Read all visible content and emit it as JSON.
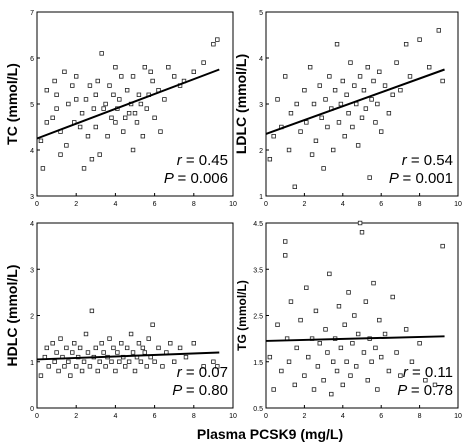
{
  "chart_data": [
    {
      "id": "tc",
      "type": "scatter",
      "ylabel": "TC (mmol/L)",
      "xlim": [
        0,
        10
      ],
      "ylim": [
        3,
        7
      ],
      "xticks": [
        0,
        2,
        4,
        6,
        8,
        10
      ],
      "yticks": [
        3,
        4,
        5,
        6,
        7
      ],
      "fit": {
        "x": [
          0,
          9.3
        ],
        "y": [
          4.25,
          5.75
        ]
      },
      "stats": {
        "r_label": "r",
        "r_value": "= 0.45",
        "p_label": "P",
        "p_value": "= 0.006"
      },
      "points": [
        [
          0.2,
          4.2
        ],
        [
          0.3,
          3.6
        ],
        [
          0.5,
          5.3
        ],
        [
          0.5,
          4.6
        ],
        [
          0.8,
          4.7
        ],
        [
          0.9,
          5.5
        ],
        [
          1.0,
          5.2
        ],
        [
          1.0,
          4.9
        ],
        [
          1.2,
          4.4
        ],
        [
          1.2,
          3.9
        ],
        [
          1.4,
          5.7
        ],
        [
          1.5,
          4.1
        ],
        [
          1.6,
          5.0
        ],
        [
          1.8,
          5.4
        ],
        [
          1.9,
          4.6
        ],
        [
          2.0,
          5.1
        ],
        [
          2.0,
          5.6
        ],
        [
          2.2,
          4.5
        ],
        [
          2.3,
          4.8
        ],
        [
          2.4,
          3.6
        ],
        [
          2.5,
          5.1
        ],
        [
          2.6,
          4.3
        ],
        [
          2.7,
          5.4
        ],
        [
          2.8,
          3.8
        ],
        [
          2.9,
          4.9
        ],
        [
          3.0,
          5.2
        ],
        [
          3.0,
          4.5
        ],
        [
          3.1,
          5.5
        ],
        [
          3.2,
          3.9
        ],
        [
          3.3,
          6.1
        ],
        [
          3.4,
          4.9
        ],
        [
          3.5,
          5.0
        ],
        [
          3.6,
          4.3
        ],
        [
          3.7,
          5.4
        ],
        [
          3.8,
          4.7
        ],
        [
          3.9,
          5.2
        ],
        [
          4.0,
          5.8
        ],
        [
          4.0,
          4.6
        ],
        [
          4.1,
          4.9
        ],
        [
          4.2,
          5.1
        ],
        [
          4.3,
          5.6
        ],
        [
          4.4,
          4.4
        ],
        [
          4.5,
          4.7
        ],
        [
          4.6,
          5.3
        ],
        [
          4.7,
          4.8
        ],
        [
          4.8,
          5.0
        ],
        [
          4.9,
          5.6
        ],
        [
          4.9,
          4.0
        ],
        [
          5.0,
          4.8
        ],
        [
          5.1,
          4.6
        ],
        [
          5.2,
          5.2
        ],
        [
          5.3,
          5.0
        ],
        [
          5.4,
          4.3
        ],
        [
          5.5,
          5.8
        ],
        [
          5.6,
          4.9
        ],
        [
          5.7,
          5.2
        ],
        [
          5.8,
          5.7
        ],
        [
          5.9,
          5.5
        ],
        [
          6.0,
          4.7
        ],
        [
          6.2,
          5.3
        ],
        [
          6.3,
          4.4
        ],
        [
          6.5,
          5.1
        ],
        [
          6.7,
          5.8
        ],
        [
          7.0,
          5.6
        ],
        [
          7.3,
          5.4
        ],
        [
          7.5,
          5.5
        ],
        [
          8.0,
          5.7
        ],
        [
          8.5,
          5.9
        ],
        [
          9.0,
          6.3
        ],
        [
          9.2,
          6.4
        ]
      ]
    },
    {
      "id": "ldlc",
      "type": "scatter",
      "ylabel": "LDLC (mmol/L)",
      "xlim": [
        0,
        10
      ],
      "ylim": [
        1,
        5
      ],
      "xticks": [
        0,
        2,
        4,
        6,
        8,
        10
      ],
      "yticks": [
        1,
        2,
        3,
        4,
        5
      ],
      "fit": {
        "x": [
          0,
          9.3
        ],
        "y": [
          2.35,
          3.75
        ]
      },
      "stats": {
        "r_label": "r",
        "r_value": "= 0.54",
        "p_label": "P",
        "p_value": "= 0.001"
      },
      "points": [
        [
          0.2,
          1.8
        ],
        [
          0.4,
          2.3
        ],
        [
          0.6,
          3.1
        ],
        [
          0.8,
          2.5
        ],
        [
          1.0,
          3.6
        ],
        [
          1.2,
          2.0
        ],
        [
          1.3,
          2.8
        ],
        [
          1.5,
          1.2
        ],
        [
          1.6,
          3.0
        ],
        [
          1.8,
          2.4
        ],
        [
          2.0,
          3.3
        ],
        [
          2.1,
          2.6
        ],
        [
          2.3,
          3.8
        ],
        [
          2.4,
          1.9
        ],
        [
          2.5,
          3.0
        ],
        [
          2.6,
          2.2
        ],
        [
          2.8,
          3.4
        ],
        [
          2.9,
          2.7
        ],
        [
          3.0,
          1.6
        ],
        [
          3.1,
          3.1
        ],
        [
          3.2,
          2.5
        ],
        [
          3.3,
          3.6
        ],
        [
          3.4,
          2.9
        ],
        [
          3.5,
          2.0
        ],
        [
          3.6,
          3.3
        ],
        [
          3.7,
          4.3
        ],
        [
          3.8,
          2.6
        ],
        [
          3.9,
          3.0
        ],
        [
          4.0,
          3.5
        ],
        [
          4.1,
          2.3
        ],
        [
          4.2,
          3.2
        ],
        [
          4.3,
          2.8
        ],
        [
          4.4,
          3.9
        ],
        [
          4.5,
          2.5
        ],
        [
          4.6,
          3.4
        ],
        [
          4.7,
          3.0
        ],
        [
          4.8,
          2.1
        ],
        [
          4.9,
          3.6
        ],
        [
          5.0,
          2.7
        ],
        [
          5.1,
          3.3
        ],
        [
          5.2,
          2.9
        ],
        [
          5.3,
          3.8
        ],
        [
          5.4,
          1.4
        ],
        [
          5.5,
          3.1
        ],
        [
          5.6,
          3.5
        ],
        [
          5.7,
          2.6
        ],
        [
          5.8,
          3.0
        ],
        [
          5.9,
          3.7
        ],
        [
          6.0,
          2.4
        ],
        [
          6.2,
          3.4
        ],
        [
          6.4,
          2.8
        ],
        [
          6.6,
          3.2
        ],
        [
          6.8,
          3.9
        ],
        [
          7.0,
          3.3
        ],
        [
          7.3,
          4.3
        ],
        [
          7.5,
          3.6
        ],
        [
          8.0,
          4.4
        ],
        [
          8.5,
          3.8
        ],
        [
          9.0,
          4.6
        ],
        [
          9.2,
          3.5
        ]
      ]
    },
    {
      "id": "hdlc",
      "type": "scatter",
      "ylabel": "HDLC (mmol/L)",
      "xlim": [
        0,
        10
      ],
      "ylim": [
        0,
        4
      ],
      "xticks": [
        0,
        2,
        4,
        6,
        8,
        10
      ],
      "yticks": [
        0,
        1,
        2,
        3,
        4
      ],
      "fit": {
        "x": [
          0,
          9.3
        ],
        "y": [
          1.05,
          1.2
        ]
      },
      "stats": {
        "r_label": "r",
        "r_value": "= 0.07",
        "p_label": "P",
        "p_value": "= 0.80"
      },
      "points": [
        [
          0.2,
          0.7
        ],
        [
          0.4,
          1.1
        ],
        [
          0.5,
          1.3
        ],
        [
          0.6,
          0.9
        ],
        [
          0.8,
          1.4
        ],
        [
          0.9,
          1.0
        ],
        [
          1.0,
          1.2
        ],
        [
          1.1,
          0.8
        ],
        [
          1.2,
          1.5
        ],
        [
          1.3,
          1.1
        ],
        [
          1.4,
          0.9
        ],
        [
          1.5,
          1.3
        ],
        [
          1.6,
          1.0
        ],
        [
          1.7,
          0.7
        ],
        [
          1.8,
          1.2
        ],
        [
          1.9,
          1.4
        ],
        [
          2.0,
          0.9
        ],
        [
          2.1,
          1.1
        ],
        [
          2.2,
          1.3
        ],
        [
          2.3,
          0.8
        ],
        [
          2.4,
          1.0
        ],
        [
          2.5,
          1.6
        ],
        [
          2.6,
          1.2
        ],
        [
          2.7,
          0.9
        ],
        [
          2.8,
          2.1
        ],
        [
          2.9,
          1.1
        ],
        [
          3.0,
          1.3
        ],
        [
          3.1,
          0.8
        ],
        [
          3.2,
          1.0
        ],
        [
          3.3,
          1.4
        ],
        [
          3.4,
          1.2
        ],
        [
          3.5,
          0.9
        ],
        [
          3.6,
          1.1
        ],
        [
          3.7,
          1.5
        ],
        [
          3.8,
          1.0
        ],
        [
          3.9,
          1.3
        ],
        [
          4.0,
          0.8
        ],
        [
          4.1,
          1.2
        ],
        [
          4.2,
          1.0
        ],
        [
          4.3,
          1.4
        ],
        [
          4.4,
          1.1
        ],
        [
          4.5,
          0.9
        ],
        [
          4.6,
          1.3
        ],
        [
          4.7,
          1.0
        ],
        [
          4.8,
          1.6
        ],
        [
          4.9,
          1.2
        ],
        [
          5.0,
          0.8
        ],
        [
          5.1,
          1.1
        ],
        [
          5.2,
          1.4
        ],
        [
          5.3,
          1.0
        ],
        [
          5.4,
          1.3
        ],
        [
          5.5,
          1.2
        ],
        [
          5.6,
          0.9
        ],
        [
          5.7,
          1.5
        ],
        [
          5.8,
          1.1
        ],
        [
          5.9,
          1.8
        ],
        [
          6.0,
          1.0
        ],
        [
          6.2,
          1.3
        ],
        [
          6.4,
          0.9
        ],
        [
          6.6,
          1.2
        ],
        [
          6.8,
          1.4
        ],
        [
          7.0,
          1.0
        ],
        [
          7.3,
          1.3
        ],
        [
          7.6,
          1.1
        ],
        [
          8.0,
          1.4
        ],
        [
          8.5,
          0.9
        ],
        [
          9.0,
          1.0
        ],
        [
          9.2,
          0.9
        ]
      ]
    },
    {
      "id": "tg",
      "type": "scatter",
      "ylabel": "TG (mmol/L)",
      "xlim": [
        0,
        10
      ],
      "ylim": [
        0.5,
        4.5
      ],
      "xticks": [
        0,
        2,
        4,
        6,
        8,
        10
      ],
      "yticks": [
        0.5,
        1.5,
        2.5,
        3.5,
        4.5
      ],
      "yticklabels": [
        "0.5",
        "1.5",
        "2.5",
        "3.5",
        "4.5"
      ],
      "fit": {
        "x": [
          0,
          9.3
        ],
        "y": [
          1.95,
          2.05
        ]
      },
      "stats": {
        "r_label": "r",
        "r_value": "= 0.11",
        "p_label": "P",
        "p_value": "= 0.78"
      },
      "points": [
        [
          0.2,
          1.6
        ],
        [
          0.4,
          0.9
        ],
        [
          0.6,
          2.3
        ],
        [
          0.8,
          1.3
        ],
        [
          1.0,
          3.8
        ],
        [
          1.0,
          4.1
        ],
        [
          1.1,
          2.0
        ],
        [
          1.2,
          1.5
        ],
        [
          1.3,
          2.8
        ],
        [
          1.5,
          1.0
        ],
        [
          1.6,
          1.8
        ],
        [
          1.8,
          2.4
        ],
        [
          2.0,
          1.2
        ],
        [
          2.1,
          3.1
        ],
        [
          2.2,
          1.6
        ],
        [
          2.4,
          2.0
        ],
        [
          2.5,
          0.9
        ],
        [
          2.6,
          2.6
        ],
        [
          2.7,
          1.4
        ],
        [
          2.8,
          1.9
        ],
        [
          3.0,
          1.1
        ],
        [
          3.1,
          2.2
        ],
        [
          3.2,
          1.7
        ],
        [
          3.3,
          3.4
        ],
        [
          3.4,
          0.8
        ],
        [
          3.5,
          1.5
        ],
        [
          3.6,
          2.0
        ],
        [
          3.7,
          1.3
        ],
        [
          3.8,
          2.7
        ],
        [
          3.9,
          1.8
        ],
        [
          4.0,
          1.0
        ],
        [
          4.1,
          2.3
        ],
        [
          4.2,
          1.5
        ],
        [
          4.3,
          3.0
        ],
        [
          4.4,
          1.2
        ],
        [
          4.5,
          1.9
        ],
        [
          4.6,
          2.5
        ],
        [
          4.7,
          1.4
        ],
        [
          4.8,
          2.1
        ],
        [
          4.9,
          4.5
        ],
        [
          5.0,
          4.3
        ],
        [
          5.1,
          1.7
        ],
        [
          5.2,
          2.8
        ],
        [
          5.3,
          1.1
        ],
        [
          5.4,
          2.0
        ],
        [
          5.5,
          1.5
        ],
        [
          5.6,
          3.2
        ],
        [
          5.7,
          1.8
        ],
        [
          5.8,
          0.9
        ],
        [
          5.9,
          2.4
        ],
        [
          6.0,
          1.6
        ],
        [
          6.2,
          2.1
        ],
        [
          6.4,
          1.3
        ],
        [
          6.6,
          2.9
        ],
        [
          6.8,
          1.7
        ],
        [
          7.0,
          1.2
        ],
        [
          7.3,
          2.2
        ],
        [
          7.6,
          1.5
        ],
        [
          8.0,
          1.9
        ],
        [
          8.3,
          1.1
        ],
        [
          8.8,
          1.0
        ],
        [
          9.2,
          4.0
        ]
      ]
    }
  ],
  "xlabel": "Plasma PCSK9  (mg/L)"
}
